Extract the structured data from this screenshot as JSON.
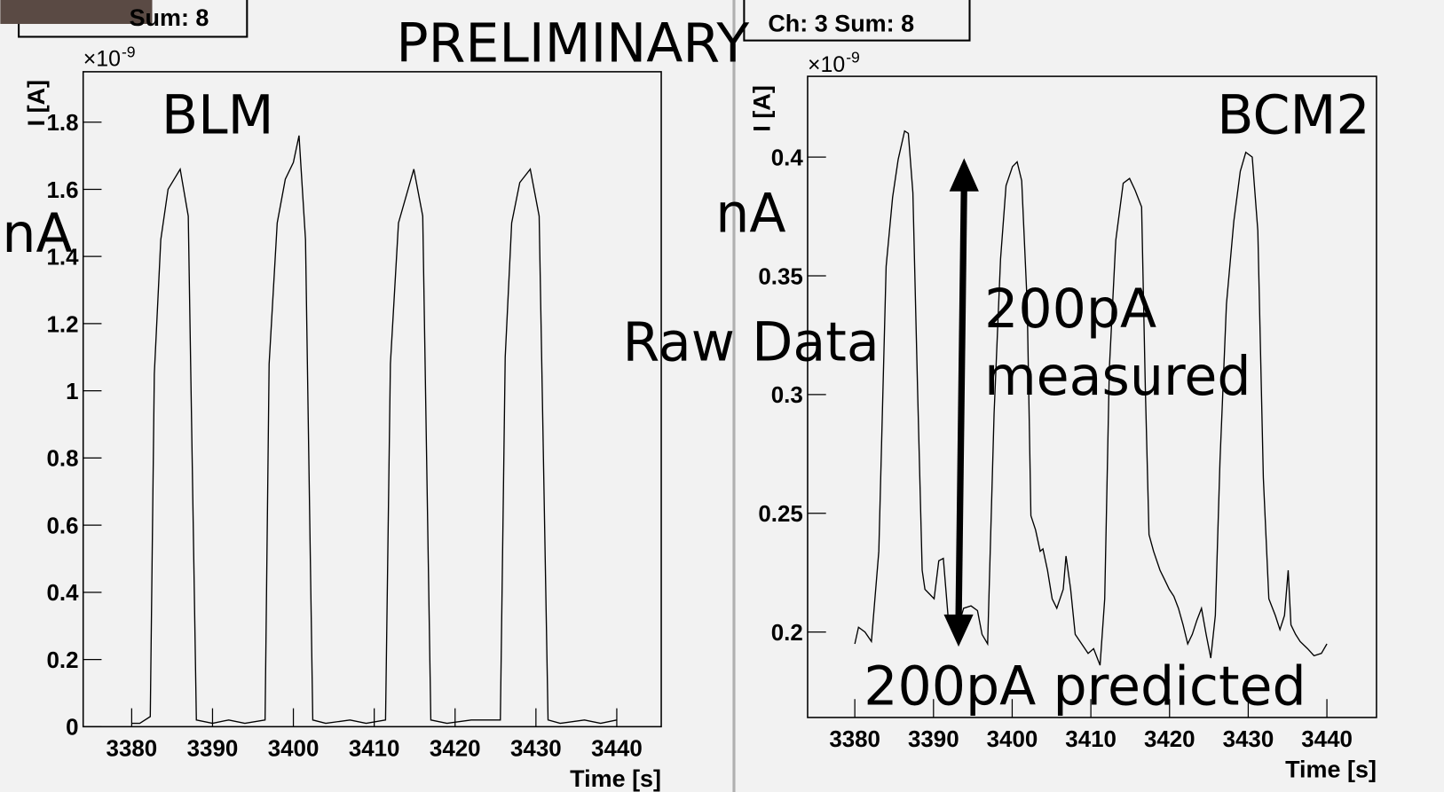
{
  "chart_data": [
    {
      "type": "line",
      "title": "BLM",
      "header": "Sum: 8",
      "x_label": "Time [s]",
      "y_label": "I [A]",
      "y_multiplier": "×10",
      "y_exponent": "-9",
      "color": "#000000",
      "xlim": [
        3374,
        3445.5
      ],
      "ylim": [
        0,
        1.95
      ],
      "xticks": [
        3380,
        3390,
        3400,
        3410,
        3420,
        3430,
        3440
      ],
      "yticks": [
        0,
        0.2,
        0.4,
        0.6,
        0.8,
        1,
        1.2,
        1.4,
        1.6,
        1.8
      ],
      "x": [
        3380,
        3381,
        3382.3,
        3382.8,
        3383.6,
        3384.5,
        3386,
        3387,
        3388,
        3390,
        3392,
        3394,
        3396.5,
        3397,
        3398,
        3399,
        3400,
        3400.7,
        3401.5,
        3402.4,
        3404,
        3407,
        3409,
        3411.4,
        3412,
        3413,
        3414.9,
        3416,
        3417,
        3419,
        3422,
        3425.6,
        3426.2,
        3427,
        3428,
        3429.3,
        3430.4,
        3431.5,
        3433,
        3436,
        3438,
        3440
      ],
      "values": [
        0.01,
        0.01,
        0.03,
        1.05,
        1.45,
        1.6,
        1.66,
        1.52,
        0.02,
        0.01,
        0.02,
        0.01,
        0.02,
        1.08,
        1.5,
        1.63,
        1.68,
        1.76,
        1.45,
        0.02,
        0.01,
        0.02,
        0.01,
        0.02,
        1.08,
        1.5,
        1.66,
        1.52,
        0.02,
        0.01,
        0.02,
        0.02,
        1.1,
        1.5,
        1.62,
        1.66,
        1.52,
        0.02,
        0.01,
        0.02,
        0.01,
        0.02
      ]
    },
    {
      "type": "line",
      "title": "BCM2",
      "header": "Ch: 3  Sum: 8",
      "x_label": "Time [s]",
      "y_label": "I [A]",
      "y_multiplier": "×10",
      "y_exponent": "-9",
      "color": "#000000",
      "xlim": [
        3374,
        3446.3
      ],
      "ylim": [
        0.164,
        0.434
      ],
      "xticks": [
        3380,
        3390,
        3400,
        3410,
        3420,
        3430,
        3440
      ],
      "yticks": [
        0.2,
        0.25,
        0.3,
        0.35,
        0.4
      ],
      "x": [
        3380.0,
        3380.47,
        3381.29,
        3382.11,
        3383.05,
        3383.98,
        3384.8,
        3385.51,
        3386.33,
        3386.8,
        3387.38,
        3387.97,
        3388.56,
        3388.91,
        3389.49,
        3390.08,
        3390.67,
        3391.25,
        3391.84,
        3392.42,
        3393.01,
        3393.83,
        3394.77,
        3395.59,
        3396.17,
        3396.88,
        3397.7,
        3398.52,
        3399.22,
        3400.04,
        3400.63,
        3401.21,
        3401.91,
        3402.38,
        3402.97,
        3403.56,
        3403.91,
        3404.49,
        3405.08,
        3405.67,
        3406.49,
        3406.84,
        3407.43,
        3408.01,
        3408.83,
        3409.65,
        3410.35,
        3411.17,
        3411.76,
        3412.35,
        3413.17,
        3414.11,
        3414.92,
        3415.63,
        3416.45,
        3416.92,
        3417.39,
        3417.97,
        3418.79,
        3419.38,
        3419.96,
        3420.55,
        3421.13,
        3421.72,
        3422.31,
        3422.89,
        3423.48,
        3424.06,
        3424.65,
        3425.24,
        3425.82,
        3426.41,
        3427.23,
        3428.17,
        3428.99,
        3429.69,
        3430.51,
        3431.22,
        3431.92,
        3432.62,
        3433.44,
        3434.03,
        3434.61,
        3435.08,
        3435.43,
        3436.02,
        3436.6,
        3437.54,
        3438.36,
        3439.3,
        3440.0
      ],
      "values": [
        0.195,
        0.202,
        0.2,
        0.196,
        0.234,
        0.354,
        0.383,
        0.399,
        0.411,
        0.41,
        0.385,
        0.303,
        0.226,
        0.218,
        0.216,
        0.214,
        0.23,
        0.231,
        0.207,
        0.206,
        0.201,
        0.21,
        0.211,
        0.209,
        0.199,
        0.195,
        0.292,
        0.357,
        0.388,
        0.396,
        0.398,
        0.39,
        0.338,
        0.249,
        0.243,
        0.234,
        0.235,
        0.226,
        0.214,
        0.21,
        0.218,
        0.232,
        0.218,
        0.199,
        0.195,
        0.191,
        0.193,
        0.186,
        0.214,
        0.311,
        0.365,
        0.389,
        0.391,
        0.386,
        0.379,
        0.303,
        0.241,
        0.234,
        0.226,
        0.222,
        0.218,
        0.215,
        0.21,
        0.203,
        0.195,
        0.199,
        0.205,
        0.21,
        0.199,
        0.189,
        0.207,
        0.272,
        0.338,
        0.373,
        0.394,
        0.402,
        0.4,
        0.369,
        0.265,
        0.214,
        0.207,
        0.201,
        0.207,
        0.226,
        0.203,
        0.199,
        0.196,
        0.193,
        0.19,
        0.191,
        0.195
      ]
    }
  ],
  "annotations": {
    "preliminary": "PRELIMINARY",
    "unit_left": "nA",
    "unit_right": "nA",
    "raw_data": "Raw Data",
    "measured_1": "200pA",
    "measured_2": "measured",
    "predicted": "200pA predicted"
  }
}
